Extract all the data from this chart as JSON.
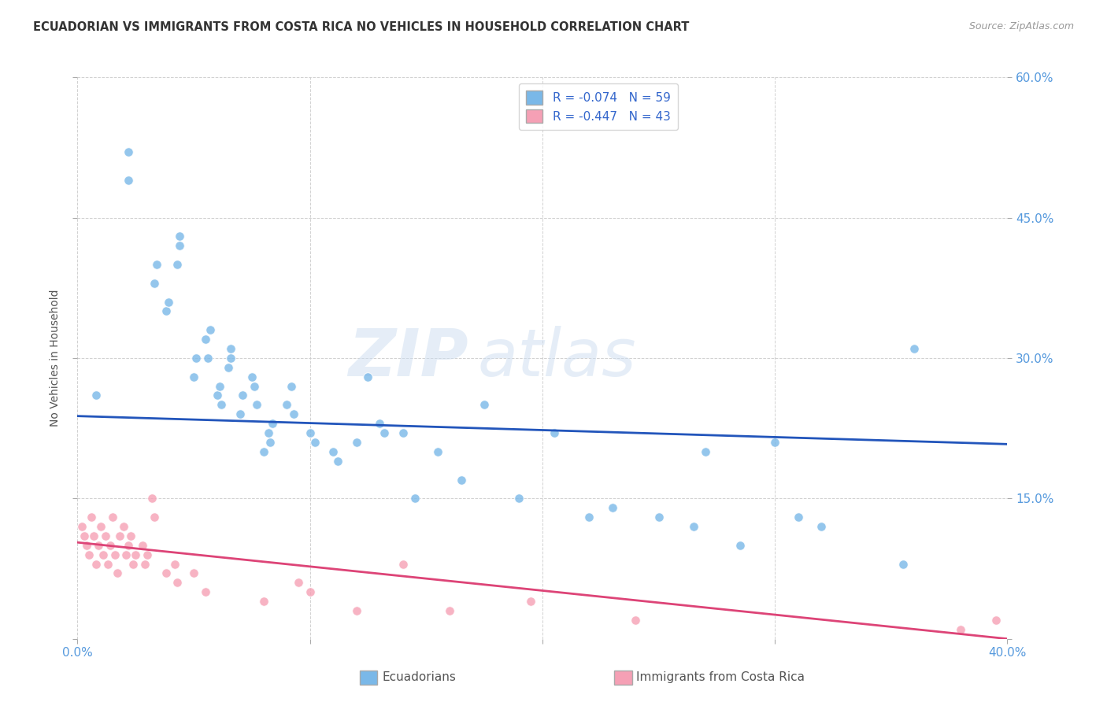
{
  "title": "ECUADORIAN VS IMMIGRANTS FROM COSTA RICA NO VEHICLES IN HOUSEHOLD CORRELATION CHART",
  "source": "Source: ZipAtlas.com",
  "ylabel": "No Vehicles in Household",
  "xlim": [
    0.0,
    0.4
  ],
  "ylim": [
    0.0,
    0.6
  ],
  "xticks": [
    0.0,
    0.1,
    0.2,
    0.3,
    0.4
  ],
  "yticks": [
    0.0,
    0.15,
    0.3,
    0.45,
    0.6
  ],
  "xtick_labels": [
    "0.0%",
    "",
    "",
    "",
    "40.0%"
  ],
  "ytick_right_labels": [
    "",
    "15.0%",
    "30.0%",
    "45.0%",
    "60.0%"
  ],
  "background_color": "#ffffff",
  "grid_color": "#cccccc",
  "blue_color": "#7ab8e8",
  "pink_color": "#f5a0b5",
  "blue_line_color": "#2255bb",
  "pink_line_color": "#dd4477",
  "legend_R1": "R = -0.074",
  "legend_N1": "N = 59",
  "legend_R2": "R = -0.447",
  "legend_N2": "N = 43",
  "watermark_zip": "ZIP",
  "watermark_atlas": "atlas",
  "ecuadorians_x": [
    0.008,
    0.022,
    0.022,
    0.033,
    0.034,
    0.038,
    0.039,
    0.043,
    0.044,
    0.044,
    0.05,
    0.051,
    0.055,
    0.056,
    0.057,
    0.06,
    0.061,
    0.062,
    0.065,
    0.066,
    0.066,
    0.07,
    0.071,
    0.075,
    0.076,
    0.077,
    0.08,
    0.082,
    0.083,
    0.084,
    0.09,
    0.092,
    0.093,
    0.1,
    0.102,
    0.11,
    0.112,
    0.12,
    0.125,
    0.13,
    0.132,
    0.14,
    0.145,
    0.155,
    0.165,
    0.175,
    0.19,
    0.205,
    0.22,
    0.23,
    0.25,
    0.265,
    0.27,
    0.285,
    0.3,
    0.31,
    0.32,
    0.355,
    0.36
  ],
  "ecuadorians_y": [
    0.26,
    0.52,
    0.49,
    0.38,
    0.4,
    0.35,
    0.36,
    0.4,
    0.42,
    0.43,
    0.28,
    0.3,
    0.32,
    0.3,
    0.33,
    0.26,
    0.27,
    0.25,
    0.29,
    0.3,
    0.31,
    0.24,
    0.26,
    0.28,
    0.27,
    0.25,
    0.2,
    0.22,
    0.21,
    0.23,
    0.25,
    0.27,
    0.24,
    0.22,
    0.21,
    0.2,
    0.19,
    0.21,
    0.28,
    0.23,
    0.22,
    0.22,
    0.15,
    0.2,
    0.17,
    0.25,
    0.15,
    0.22,
    0.13,
    0.14,
    0.13,
    0.12,
    0.2,
    0.1,
    0.21,
    0.13,
    0.12,
    0.08,
    0.31
  ],
  "costarica_x": [
    0.002,
    0.003,
    0.004,
    0.005,
    0.006,
    0.007,
    0.008,
    0.009,
    0.01,
    0.011,
    0.012,
    0.013,
    0.014,
    0.015,
    0.016,
    0.017,
    0.018,
    0.02,
    0.021,
    0.022,
    0.023,
    0.024,
    0.025,
    0.028,
    0.029,
    0.03,
    0.032,
    0.033,
    0.038,
    0.042,
    0.043,
    0.05,
    0.055,
    0.08,
    0.095,
    0.1,
    0.12,
    0.14,
    0.16,
    0.195,
    0.24,
    0.38,
    0.395
  ],
  "costarica_y": [
    0.12,
    0.11,
    0.1,
    0.09,
    0.13,
    0.11,
    0.08,
    0.1,
    0.12,
    0.09,
    0.11,
    0.08,
    0.1,
    0.13,
    0.09,
    0.07,
    0.11,
    0.12,
    0.09,
    0.1,
    0.11,
    0.08,
    0.09,
    0.1,
    0.08,
    0.09,
    0.15,
    0.13,
    0.07,
    0.08,
    0.06,
    0.07,
    0.05,
    0.04,
    0.06,
    0.05,
    0.03,
    0.08,
    0.03,
    0.04,
    0.02,
    0.01,
    0.02
  ],
  "blue_line_x0": 0.0,
  "blue_line_y0": 0.238,
  "blue_line_x1": 0.4,
  "blue_line_y1": 0.208,
  "pink_line_x0": 0.0,
  "pink_line_y0": 0.103,
  "pink_line_x1": 0.4,
  "pink_line_y1": 0.0
}
